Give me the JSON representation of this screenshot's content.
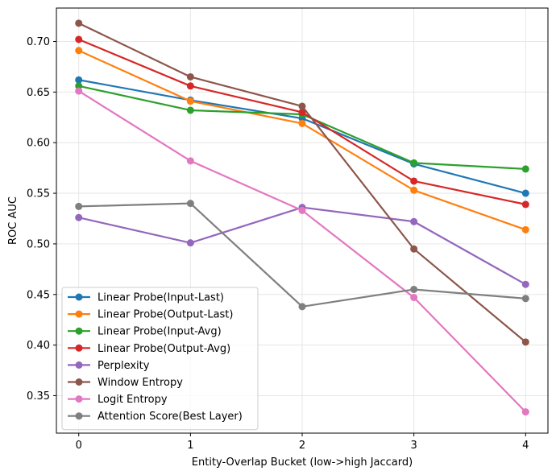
{
  "chart_data": {
    "type": "line",
    "title": "",
    "xlabel": "Entity-Overlap Bucket (low->high Jaccard)",
    "ylabel": "ROC AUC",
    "x": [
      0,
      1,
      2,
      3,
      4
    ],
    "x_ticks": [
      "0",
      "1",
      "2",
      "3",
      "4"
    ],
    "xlim": [
      -0.2,
      4.2
    ],
    "ylim": [
      0.313,
      0.733
    ],
    "y_ticks": [
      "0.35",
      "0.40",
      "0.45",
      "0.50",
      "0.55",
      "0.60",
      "0.65",
      "0.70"
    ],
    "y_tick_values": [
      0.35,
      0.4,
      0.45,
      0.5,
      0.55,
      0.6,
      0.65,
      0.7
    ],
    "grid": true,
    "legend_position": "lower-left",
    "series": [
      {
        "name": "Linear Probe(Input-Last)",
        "color": "#1f77b4",
        "values": [
          0.662,
          0.642,
          0.624,
          0.579,
          0.55
        ]
      },
      {
        "name": "Linear Probe(Output-Last)",
        "color": "#ff7f0e",
        "values": [
          0.691,
          0.641,
          0.619,
          0.553,
          0.514
        ]
      },
      {
        "name": "Linear Probe(Input-Avg)",
        "color": "#2ca02c",
        "values": [
          0.656,
          0.632,
          0.628,
          0.58,
          0.574
        ]
      },
      {
        "name": "Linear Probe(Output-Avg)",
        "color": "#d62728",
        "values": [
          0.702,
          0.656,
          0.63,
          0.562,
          0.539
        ]
      },
      {
        "name": "Perplexity",
        "color": "#9467bd",
        "values": [
          0.526,
          0.501,
          0.536,
          0.522,
          0.46
        ]
      },
      {
        "name": "Window Entropy",
        "color": "#8c564b",
        "values": [
          0.718,
          0.665,
          0.636,
          0.495,
          0.403
        ]
      },
      {
        "name": "Logit Entropy",
        "color": "#e377c2",
        "values": [
          0.651,
          0.582,
          0.533,
          0.447,
          0.334
        ]
      },
      {
        "name": "Attention Score(Best Layer)",
        "color": "#7f7f7f",
        "values": [
          0.537,
          0.54,
          0.438,
          0.455,
          0.446
        ]
      }
    ]
  }
}
